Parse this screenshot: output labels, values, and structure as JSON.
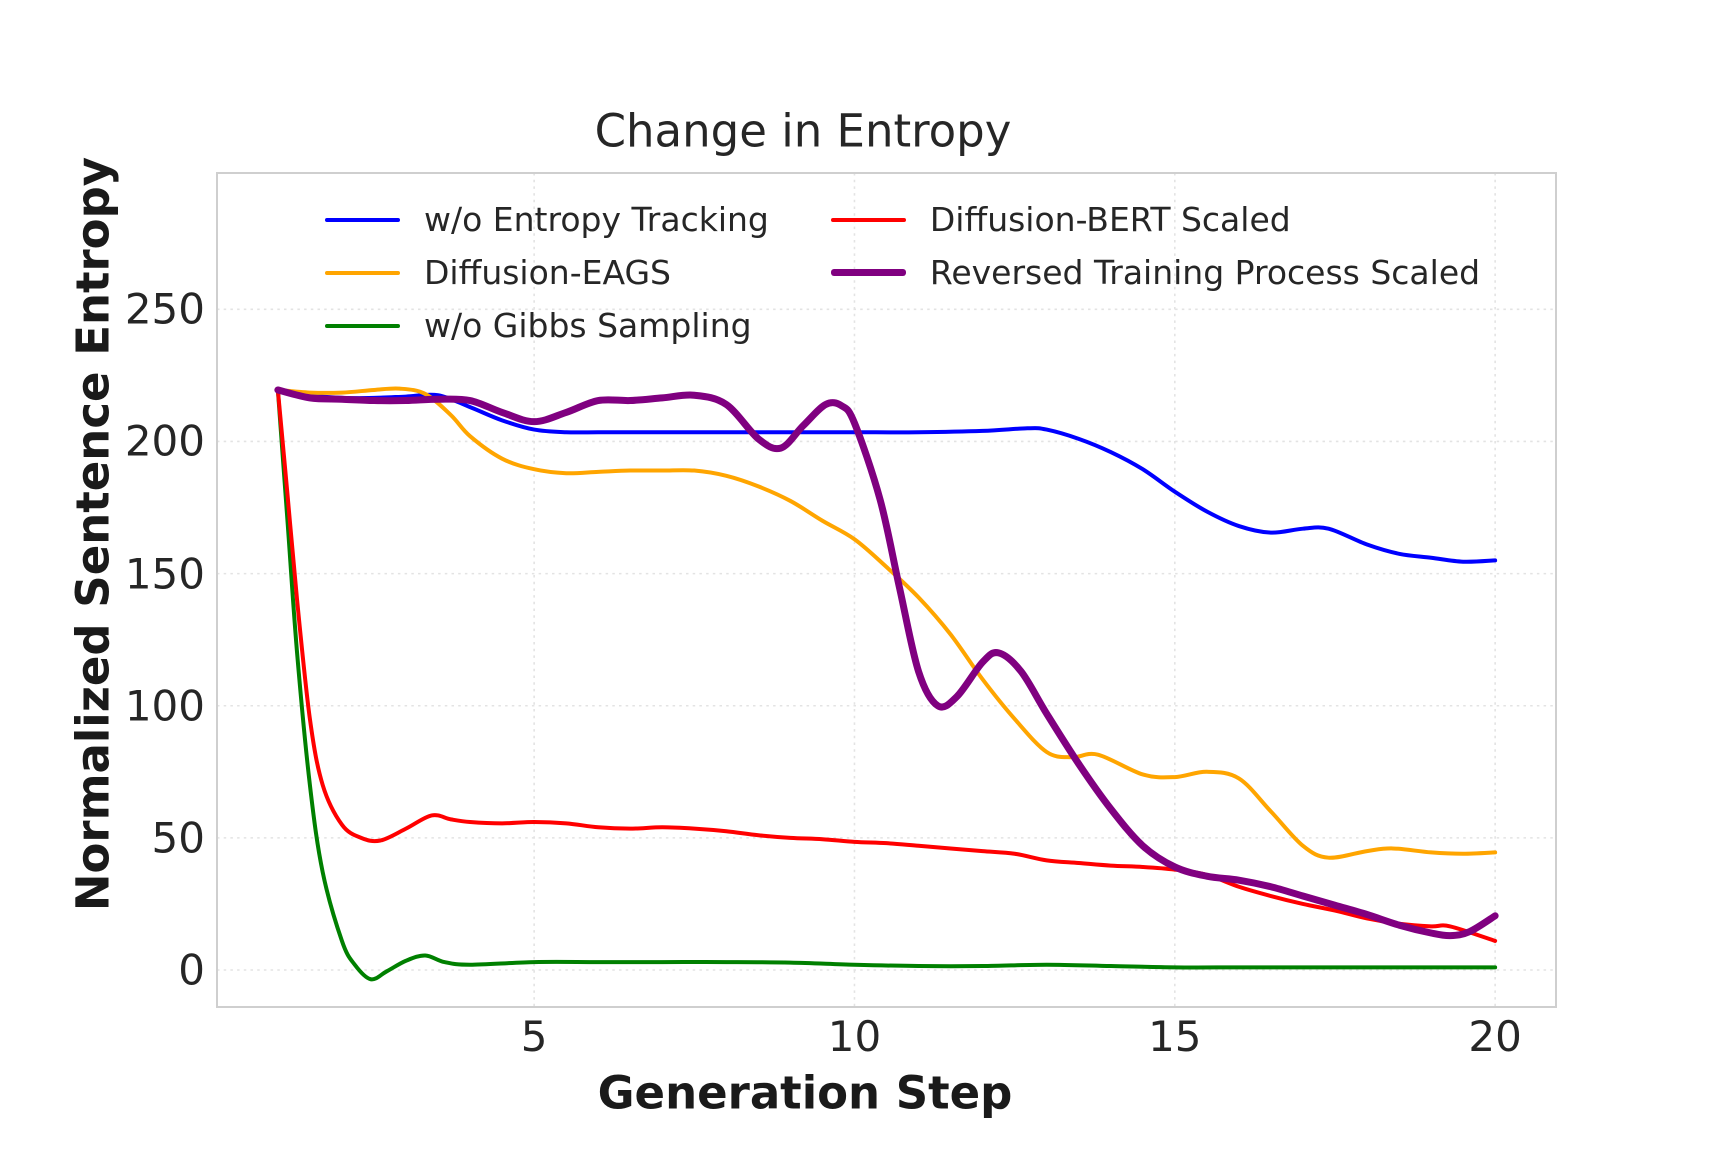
{
  "chart_data": {
    "type": "line",
    "title": "Change in Entropy",
    "xlabel": "Generation Step",
    "ylabel": "Normalized Sentence Entropy",
    "xlim": [
      0.05,
      20.95
    ],
    "ylim": [
      -14,
      301.6
    ],
    "x_ticks": [
      5,
      10,
      15,
      20
    ],
    "y_ticks": [
      0,
      50,
      100,
      150,
      200,
      250
    ],
    "grid": true,
    "legend_position": "upper left, 2 columns, column-major",
    "series": [
      {
        "id": "wo-entropy-tracking",
        "label": "w/o Entropy Tracking",
        "color": "#0000ff",
        "width": 4,
        "points": [
          [
            1,
            219.5
          ],
          [
            1.5,
            217.5
          ],
          [
            2,
            216.5
          ],
          [
            2.5,
            216.5
          ],
          [
            3,
            217
          ],
          [
            3.5,
            217.5
          ],
          [
            4,
            213
          ],
          [
            4.5,
            208
          ],
          [
            5,
            204.5
          ],
          [
            5.5,
            203.5
          ],
          [
            6,
            203.5
          ],
          [
            7,
            203.5
          ],
          [
            8,
            203.5
          ],
          [
            9,
            203.5
          ],
          [
            10,
            203.5
          ],
          [
            11,
            203.5
          ],
          [
            12,
            204
          ],
          [
            12.7,
            205
          ],
          [
            13,
            204.5
          ],
          [
            13.5,
            201
          ],
          [
            14,
            196
          ],
          [
            14.5,
            189.5
          ],
          [
            15,
            181
          ],
          [
            15.5,
            173.5
          ],
          [
            16,
            168
          ],
          [
            16.5,
            165.5
          ],
          [
            17,
            167
          ],
          [
            17.4,
            167
          ],
          [
            18,
            161
          ],
          [
            18.5,
            157.5
          ],
          [
            19,
            156
          ],
          [
            19.5,
            154.5
          ],
          [
            20,
            155
          ]
        ]
      },
      {
        "id": "diffusion-eags",
        "label": "Diffusion-EAGS",
        "color": "#ffa500",
        "width": 4,
        "points": [
          [
            1,
            219.5
          ],
          [
            1.5,
            218.5
          ],
          [
            2,
            218.5
          ],
          [
            2.5,
            219.5
          ],
          [
            2.9,
            220
          ],
          [
            3.3,
            218
          ],
          [
            3.7,
            210
          ],
          [
            4,
            202
          ],
          [
            4.5,
            193.5
          ],
          [
            5,
            189.5
          ],
          [
            5.5,
            188
          ],
          [
            6,
            188.5
          ],
          [
            6.5,
            189
          ],
          [
            7,
            189
          ],
          [
            7.5,
            189
          ],
          [
            8,
            187
          ],
          [
            8.5,
            183
          ],
          [
            9,
            177.5
          ],
          [
            9.5,
            170
          ],
          [
            10,
            163
          ],
          [
            10.5,
            152.5
          ],
          [
            11,
            141
          ],
          [
            11.5,
            127
          ],
          [
            12,
            110
          ],
          [
            12.5,
            95
          ],
          [
            13,
            82.5
          ],
          [
            13.4,
            80.5
          ],
          [
            13.8,
            81.5
          ],
          [
            14.5,
            74
          ],
          [
            15,
            73
          ],
          [
            15.5,
            75
          ],
          [
            16,
            72.5
          ],
          [
            16.5,
            60
          ],
          [
            17,
            47
          ],
          [
            17.4,
            42.5
          ],
          [
            18,
            45
          ],
          [
            18.4,
            46
          ],
          [
            19,
            44.5
          ],
          [
            19.5,
            44
          ],
          [
            20,
            44.5
          ]
        ]
      },
      {
        "id": "wo-gibbs-sampling",
        "label": "w/o Gibbs Sampling",
        "color": "#008000",
        "width": 4,
        "points": [
          [
            1,
            219.5
          ],
          [
            1.15,
            170
          ],
          [
            1.3,
            120
          ],
          [
            1.5,
            70
          ],
          [
            1.7,
            37
          ],
          [
            2,
            11
          ],
          [
            2.2,
            2
          ],
          [
            2.45,
            -3.5
          ],
          [
            2.7,
            -0.5
          ],
          [
            3,
            3.5
          ],
          [
            3.3,
            5.5
          ],
          [
            3.6,
            3
          ],
          [
            4,
            2
          ],
          [
            5,
            3
          ],
          [
            6,
            3
          ],
          [
            7,
            3
          ],
          [
            8,
            3
          ],
          [
            9,
            2.8
          ],
          [
            10,
            2
          ],
          [
            11,
            1.5
          ],
          [
            12,
            1.5
          ],
          [
            13,
            2
          ],
          [
            14,
            1.5
          ],
          [
            15,
            1
          ],
          [
            16,
            1
          ],
          [
            17,
            1
          ],
          [
            18,
            1
          ],
          [
            19,
            1
          ],
          [
            20,
            1
          ]
        ]
      },
      {
        "id": "diffusion-bert-scaled",
        "label": "Diffusion-BERT Scaled",
        "color": "#ff0000",
        "width": 4,
        "points": [
          [
            1,
            219.5
          ],
          [
            1.15,
            180
          ],
          [
            1.3,
            140
          ],
          [
            1.5,
            95
          ],
          [
            1.7,
            70
          ],
          [
            2,
            55
          ],
          [
            2.3,
            50
          ],
          [
            2.6,
            49
          ],
          [
            3,
            53.5
          ],
          [
            3.4,
            58.5
          ],
          [
            3.7,
            57
          ],
          [
            4,
            56
          ],
          [
            4.5,
            55.5
          ],
          [
            5,
            56
          ],
          [
            5.5,
            55.5
          ],
          [
            6,
            54
          ],
          [
            6.5,
            53.5
          ],
          [
            7,
            54
          ],
          [
            7.5,
            53.5
          ],
          [
            8,
            52.5
          ],
          [
            8.5,
            51
          ],
          [
            9,
            50
          ],
          [
            9.5,
            49.5
          ],
          [
            10,
            48.5
          ],
          [
            10.5,
            48
          ],
          [
            11,
            47
          ],
          [
            11.5,
            46
          ],
          [
            12,
            45
          ],
          [
            12.5,
            44
          ],
          [
            13,
            41.5
          ],
          [
            13.5,
            40.5
          ],
          [
            14,
            39.5
          ],
          [
            14.5,
            39
          ],
          [
            15,
            38
          ],
          [
            15.5,
            36
          ],
          [
            16,
            31.5
          ],
          [
            16.5,
            28
          ],
          [
            17,
            25
          ],
          [
            17.5,
            22.5
          ],
          [
            18,
            19.5
          ],
          [
            18.5,
            17.5
          ],
          [
            19,
            16.5
          ],
          [
            19.3,
            16.5
          ],
          [
            20,
            11
          ]
        ]
      },
      {
        "id": "reversed-training-process-scaled",
        "label": "Reversed Training Process Scaled",
        "color": "#800080",
        "width": 7,
        "points": [
          [
            1,
            219.5
          ],
          [
            1.5,
            216.5
          ],
          [
            2,
            216
          ],
          [
            2.5,
            215.5
          ],
          [
            3,
            215.5
          ],
          [
            3.5,
            216
          ],
          [
            4,
            215.5
          ],
          [
            4.5,
            211
          ],
          [
            5,
            207.5
          ],
          [
            5.5,
            211
          ],
          [
            6,
            215.5
          ],
          [
            6.5,
            215.5
          ],
          [
            7,
            216.5
          ],
          [
            7.5,
            217.5
          ],
          [
            8,
            214
          ],
          [
            8.5,
            201
          ],
          [
            8.85,
            197.5
          ],
          [
            9.2,
            206
          ],
          [
            9.55,
            214
          ],
          [
            9.8,
            213.5
          ],
          [
            10,
            207
          ],
          [
            10.4,
            178
          ],
          [
            10.7,
            145
          ],
          [
            11,
            113
          ],
          [
            11.3,
            100
          ],
          [
            11.6,
            103.5
          ],
          [
            12,
            116.5
          ],
          [
            12.25,
            120
          ],
          [
            12.6,
            113
          ],
          [
            13,
            97
          ],
          [
            13.5,
            78
          ],
          [
            14,
            61
          ],
          [
            14.5,
            47
          ],
          [
            15,
            39
          ],
          [
            15.5,
            35.5
          ],
          [
            16,
            34
          ],
          [
            16.5,
            31.5
          ],
          [
            17,
            28
          ],
          [
            17.5,
            24.5
          ],
          [
            18,
            21
          ],
          [
            18.5,
            17
          ],
          [
            19,
            14
          ],
          [
            19.3,
            13
          ],
          [
            19.6,
            14.5
          ],
          [
            20,
            20.5
          ]
        ]
      }
    ],
    "colors": {
      "text": "#262626",
      "axis_label": "#1a1a1a",
      "grid": "#e3e3e3",
      "spine": "#cfcfcf",
      "background": "#ffffff"
    }
  }
}
